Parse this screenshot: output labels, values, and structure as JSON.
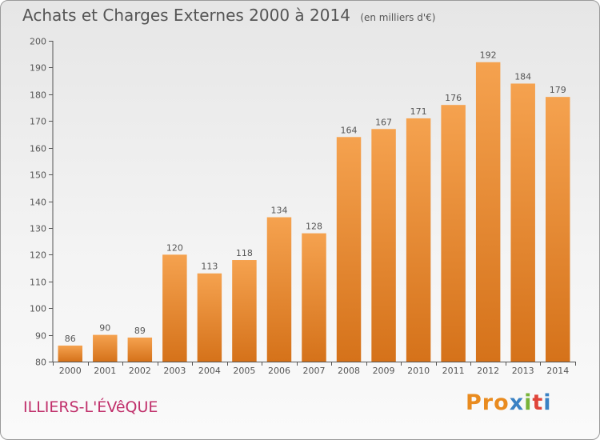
{
  "chart_data": {
    "type": "bar",
    "title": "Achats et Charges Externes 2000 à 2014",
    "subtitle": "(en milliers d'€)",
    "xlabel": "",
    "ylabel": "",
    "categories": [
      "2000",
      "2001",
      "2002",
      "2003",
      "2004",
      "2005",
      "2006",
      "2007",
      "2008",
      "2009",
      "2010",
      "2011",
      "2012",
      "2013",
      "2014"
    ],
    "values": [
      86,
      90,
      89,
      120,
      113,
      118,
      134,
      128,
      164,
      167,
      171,
      176,
      192,
      184,
      179
    ],
    "ylim": [
      80,
      200
    ],
    "yticks": [
      80,
      90,
      100,
      110,
      120,
      130,
      140,
      150,
      160,
      170,
      180,
      190,
      200
    ],
    "grid": false,
    "legend": "none",
    "colors": {
      "bar_top": "#f5a24f",
      "bar_bottom": "#d5721a",
      "text": "#555555"
    }
  },
  "footer": {
    "place": "ILLIERS-L'ÉVêQUE",
    "brand_letters": [
      "P",
      "r",
      "o",
      "x",
      "i",
      "t",
      "i"
    ],
    "brand_colors": [
      "#e98b1f",
      "#e98b1f",
      "#e98b1f",
      "#3b82c4",
      "#79b43a",
      "#e0453a",
      "#3b82c4"
    ]
  }
}
